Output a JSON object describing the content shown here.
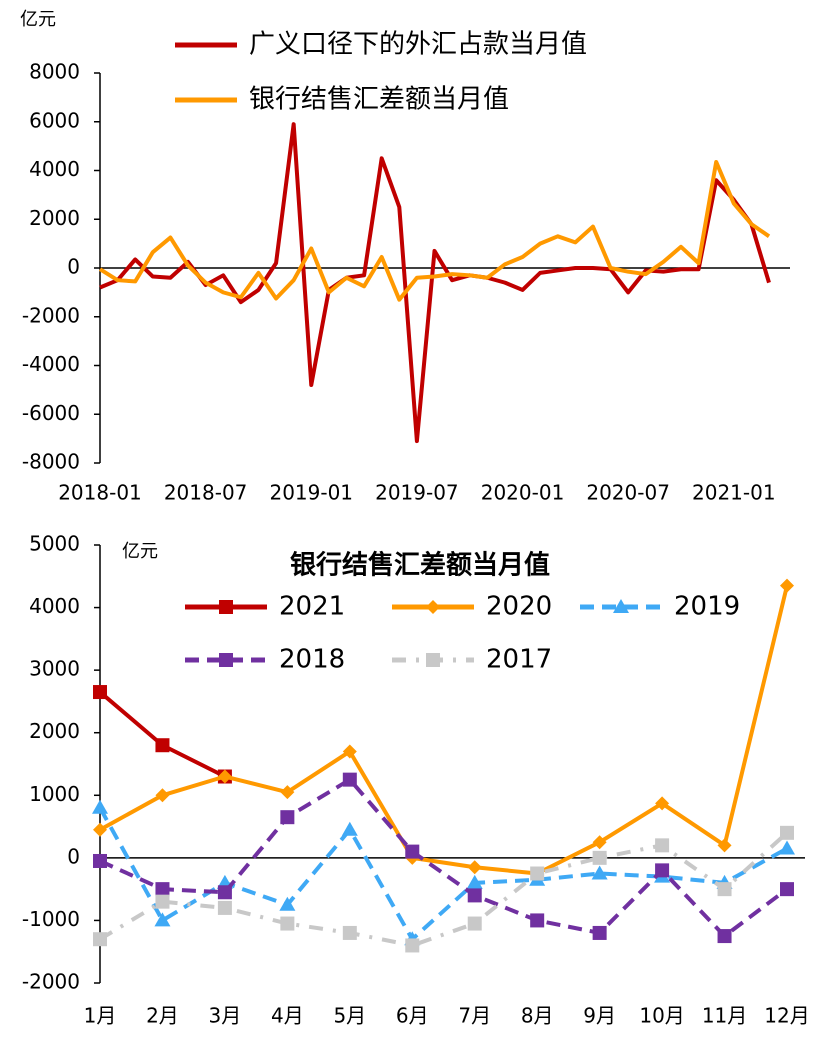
{
  "chart_data": [
    {
      "type": "line",
      "y_unit": "亿元",
      "categories": [
        "2018-01",
        null,
        null,
        null,
        null,
        null,
        "2018-07",
        null,
        null,
        null,
        null,
        null,
        "2019-01",
        null,
        null,
        null,
        null,
        null,
        "2019-07",
        null,
        null,
        null,
        null,
        null,
        "2020-01",
        null,
        null,
        null,
        null,
        null,
        "2020-07",
        null,
        null,
        null,
        null,
        null,
        "2021-01",
        null,
        null
      ],
      "series": [
        {
          "name": "广义口径下的外汇占款当月值",
          "color": "#c00000",
          "values": [
            -800,
            -500,
            350,
            -350,
            -400,
            250,
            -700,
            -300,
            -1400,
            -900,
            200,
            5900,
            -4800,
            -900,
            -400,
            -300,
            4500,
            2500,
            -7100,
            700,
            -500,
            -300,
            -400,
            -600,
            -900,
            -200,
            -100,
            0,
            0,
            -50,
            -1000,
            -100,
            -150,
            -50,
            -50,
            3600,
            2800,
            1800,
            -600
          ]
        },
        {
          "name": "银行结售汇差额当月值",
          "color": "#ff9900",
          "values": [
            -50,
            -500,
            -550,
            650,
            1250,
            100,
            -600,
            -1000,
            -1200,
            -200,
            -1250,
            -500,
            800,
            -1000,
            -400,
            -750,
            450,
            -1300,
            -400,
            -350,
            -250,
            -300,
            -400,
            150,
            450,
            1000,
            1300,
            1050,
            1700,
            0,
            -150,
            -250,
            250,
            870,
            200,
            4350,
            2650,
            1800,
            1300
          ]
        }
      ],
      "ylim": [
        -8000,
        8000
      ],
      "yticks": [
        -8000,
        -6000,
        -4000,
        -2000,
        0,
        2000,
        4000,
        6000,
        8000
      ],
      "grid": false
    },
    {
      "type": "line",
      "title": "银行结售汇差额当月值",
      "y_unit": "亿元",
      "categories": [
        "1月",
        "2月",
        "3月",
        "4月",
        "5月",
        "6月",
        "7月",
        "8月",
        "9月",
        "10月",
        "11月",
        "12月"
      ],
      "series": [
        {
          "name": "2021",
          "color": "#c00000",
          "marker": "square",
          "dash": "solid",
          "values": [
            2650,
            1800,
            1300,
            null,
            null,
            null,
            null,
            null,
            null,
            null,
            null,
            null
          ]
        },
        {
          "name": "2020",
          "color": "#ff9900",
          "marker": "diamond",
          "dash": "solid",
          "values": [
            450,
            1000,
            1300,
            1050,
            1700,
            0,
            -150,
            -250,
            250,
            870,
            200,
            4350
          ]
        },
        {
          "name": "2019",
          "color": "#3fa9f5",
          "marker": "triangle",
          "dash": "dashed",
          "values": [
            800,
            -1000,
            -400,
            -750,
            450,
            -1300,
            -400,
            -350,
            -250,
            -300,
            -400,
            150
          ]
        },
        {
          "name": "2018",
          "color": "#7030a0",
          "marker": "square",
          "dash": "dashed",
          "values": [
            -50,
            -500,
            -550,
            650,
            1250,
            100,
            -600,
            -1000,
            -1200,
            -200,
            -1250,
            -500
          ]
        },
        {
          "name": "2017",
          "color": "#c8c8c8",
          "marker": "square",
          "dash": "dashdot",
          "values": [
            -1300,
            -700,
            -800,
            -1050,
            -1200,
            -1400,
            -1050,
            -250,
            0,
            200,
            -500,
            400
          ]
        }
      ],
      "ylim": [
        -2000,
        5000
      ],
      "yticks": [
        -2000,
        -1000,
        0,
        1000,
        2000,
        3000,
        4000,
        5000
      ],
      "grid": false
    }
  ]
}
